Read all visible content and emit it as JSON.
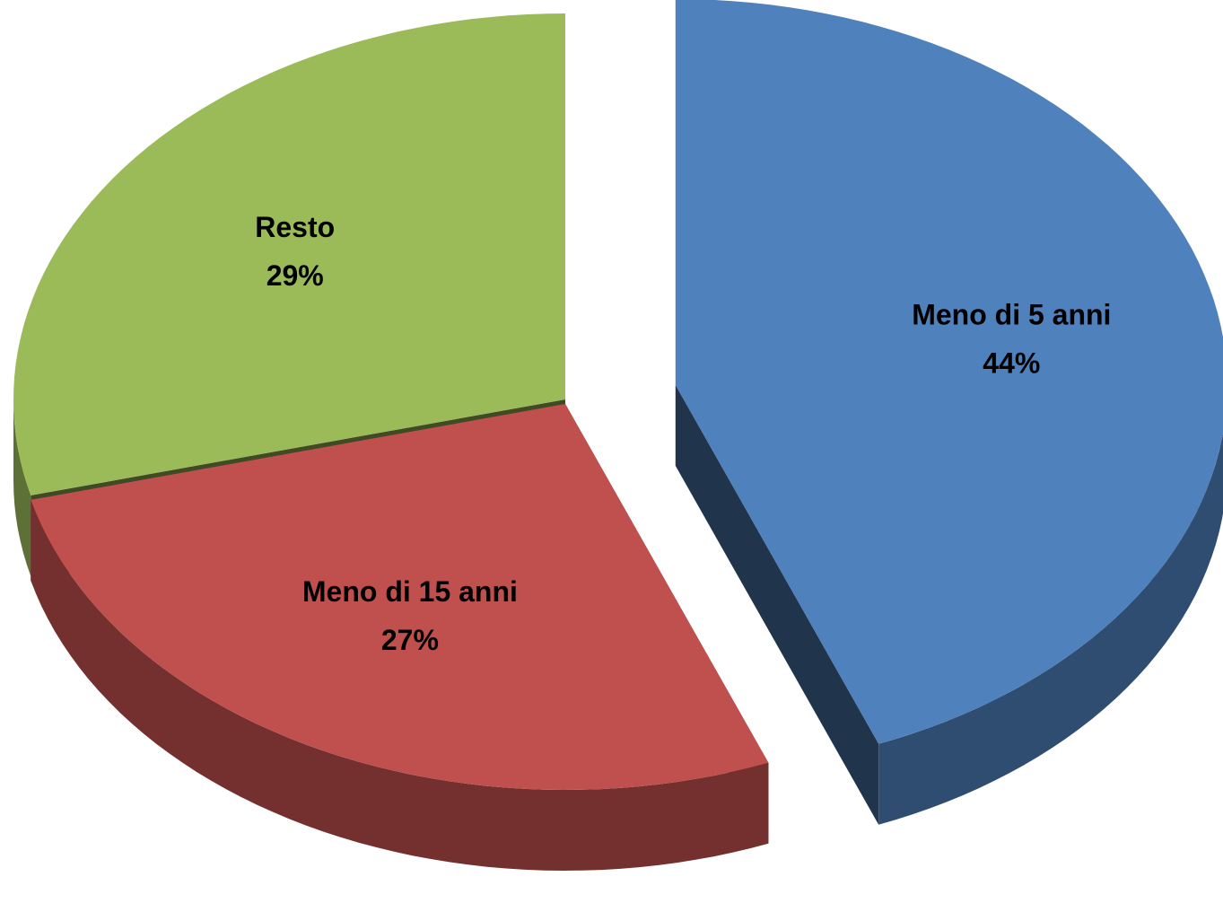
{
  "chart_data": {
    "type": "pie",
    "categories": [
      "Meno di 5 anni",
      "Meno di 15 anni",
      "Resto"
    ],
    "values": [
      44,
      27,
      29
    ],
    "value_labels": [
      "44%",
      "27%",
      "29%"
    ],
    "colors": [
      "#4f81bd",
      "#c0504d",
      "#9bbb59"
    ]
  }
}
